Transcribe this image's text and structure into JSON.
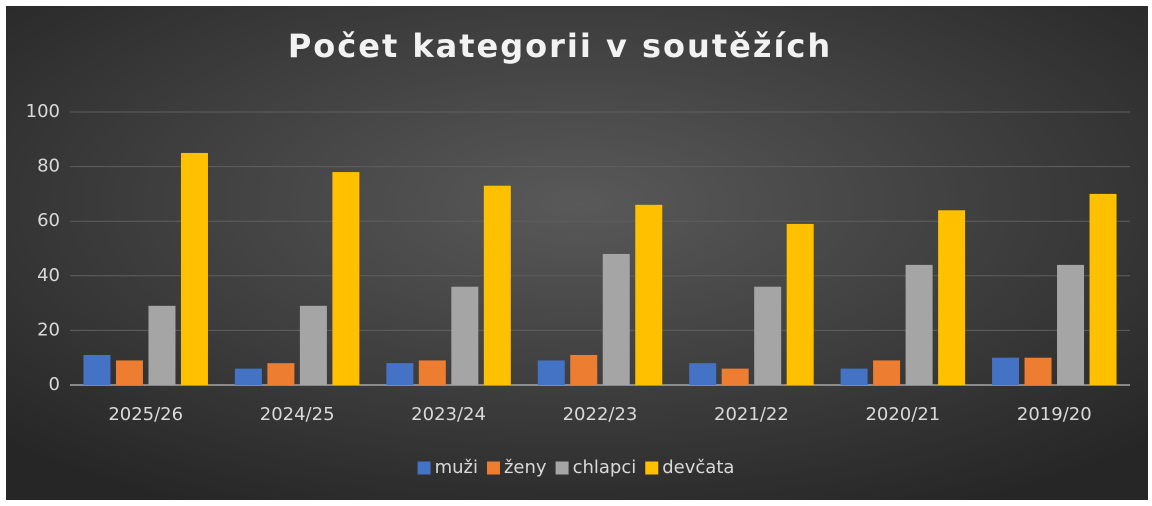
{
  "chart_data": {
    "type": "bar",
    "title": "Počet kategorii v soutěžích",
    "categories": [
      "2025/26",
      "2024/25",
      "2023/24",
      "2022/23",
      "2021/22",
      "2020/21",
      "2019/20"
    ],
    "series": [
      {
        "name": "muži",
        "color": "#4472c4",
        "values": [
          11,
          6,
          8,
          9,
          8,
          6,
          10
        ]
      },
      {
        "name": "ženy",
        "color": "#ed7d31",
        "values": [
          9,
          8,
          9,
          11,
          6,
          9,
          10
        ]
      },
      {
        "name": "chlapci",
        "color": "#a5a5a5",
        "values": [
          29,
          29,
          36,
          48,
          36,
          44,
          44
        ]
      },
      {
        "name": "devčata",
        "color": "#ffc000",
        "values": [
          85,
          78,
          73,
          66,
          59,
          64,
          70
        ]
      }
    ],
    "ylim": [
      0,
      100
    ],
    "yticks": [
      0,
      20,
      40,
      60,
      80,
      100
    ],
    "grid": true,
    "legend": "bottom"
  }
}
